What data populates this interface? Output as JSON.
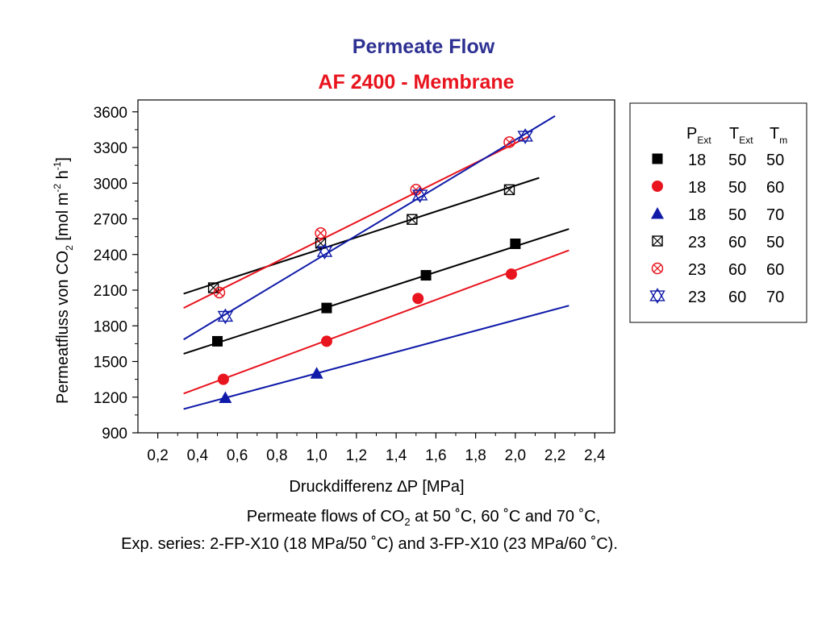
{
  "chart_data": {
    "type": "scatter",
    "title": "Permeate Flow",
    "subtitle": "AF 2400 - Membrane",
    "xlabel": "Druckdifferenz ∆P [MPa]",
    "ylabel": {
      "main": "Permeatfluss von CO",
      "sub1": "2",
      "mid": " [mol m",
      "sup1": "-2",
      "mid2": " h",
      "sup2": "-1",
      "end": "]"
    },
    "xlim": [
      0.1,
      2.5
    ],
    "ylim": [
      900,
      3700
    ],
    "x_ticks": [
      "0,2",
      "0,4",
      "0,6",
      "0,8",
      "1,0",
      "1,2",
      "1,4",
      "1,6",
      "1,8",
      "2,0",
      "2,2",
      "2,4"
    ],
    "y_ticks": [
      "900",
      "1200",
      "1500",
      "1800",
      "2100",
      "2400",
      "2700",
      "3000",
      "3300",
      "3600"
    ],
    "grid": false,
    "legend_placement": "right",
    "legend_header": {
      "p_main": "P",
      "p_sub": "Ext",
      "t_main": "T",
      "t_sub": "Ext",
      "tm_main": "T",
      "tm_sub": "m"
    },
    "series": [
      {
        "p": "18",
        "text": "50",
        "tm": "50",
        "marker": "square-filled",
        "color": "#000000",
        "points": [
          [
            0.5,
            1670
          ],
          [
            1.05,
            1950
          ],
          [
            1.55,
            2225
          ],
          [
            2.0,
            2490
          ]
        ],
        "fit": [
          [
            0.33,
            1565
          ],
          [
            2.27,
            2615
          ]
        ]
      },
      {
        "p": "18",
        "text": "50",
        "tm": "60",
        "marker": "circle-filled",
        "color": "#e8141e",
        "points": [
          [
            0.53,
            1350
          ],
          [
            1.05,
            1670
          ],
          [
            1.51,
            2030
          ],
          [
            1.98,
            2235
          ]
        ],
        "fit": [
          [
            0.33,
            1230
          ],
          [
            2.27,
            2435
          ]
        ]
      },
      {
        "p": "18",
        "text": "50",
        "tm": "70",
        "marker": "triangle-filled",
        "color": "#0f1aa8",
        "points": [
          [
            0.54,
            1195
          ],
          [
            1.0,
            1400
          ]
        ],
        "fit": [
          [
            0.33,
            1100
          ],
          [
            2.27,
            1970
          ]
        ]
      },
      {
        "p": "23",
        "text": "60",
        "tm": "50",
        "marker": "square-cross",
        "color": "#000000",
        "points": [
          [
            0.48,
            2120
          ],
          [
            1.02,
            2495
          ],
          [
            1.48,
            2695
          ],
          [
            1.97,
            2945
          ]
        ],
        "fit": [
          [
            0.33,
            2070
          ],
          [
            2.12,
            3045
          ]
        ]
      },
      {
        "p": "23",
        "text": "60",
        "tm": "60",
        "marker": "circle-cross",
        "color": "#e8141e",
        "points": [
          [
            0.51,
            2080
          ],
          [
            1.02,
            2580
          ],
          [
            1.5,
            2945
          ],
          [
            1.97,
            3345
          ]
        ],
        "fit": [
          [
            0.33,
            1950
          ],
          [
            2.07,
            3395
          ]
        ]
      },
      {
        "p": "23",
        "text": "60",
        "tm": "70",
        "marker": "star-triangle",
        "color": "#0f1aa8",
        "points": [
          [
            0.54,
            1880
          ],
          [
            1.04,
            2425
          ],
          [
            1.52,
            2900
          ],
          [
            2.05,
            3395
          ]
        ],
        "fit": [
          [
            0.33,
            1685
          ],
          [
            2.2,
            3565
          ]
        ]
      }
    ]
  },
  "caption": {
    "line1_a": "Permeate flows of CO",
    "line1_sub": "2",
    "line1_b": " at 50 ˚C, 60 ˚C and 70 ˚C,",
    "line2": "Exp. series: 2-FP-X10 (18 MPa/50 ˚C) and 3-FP-X10 (23 MPa/60 ˚C)."
  },
  "colors": {
    "title": "#2e3192",
    "subtitle": "#e8141e",
    "axis": "#000000"
  }
}
